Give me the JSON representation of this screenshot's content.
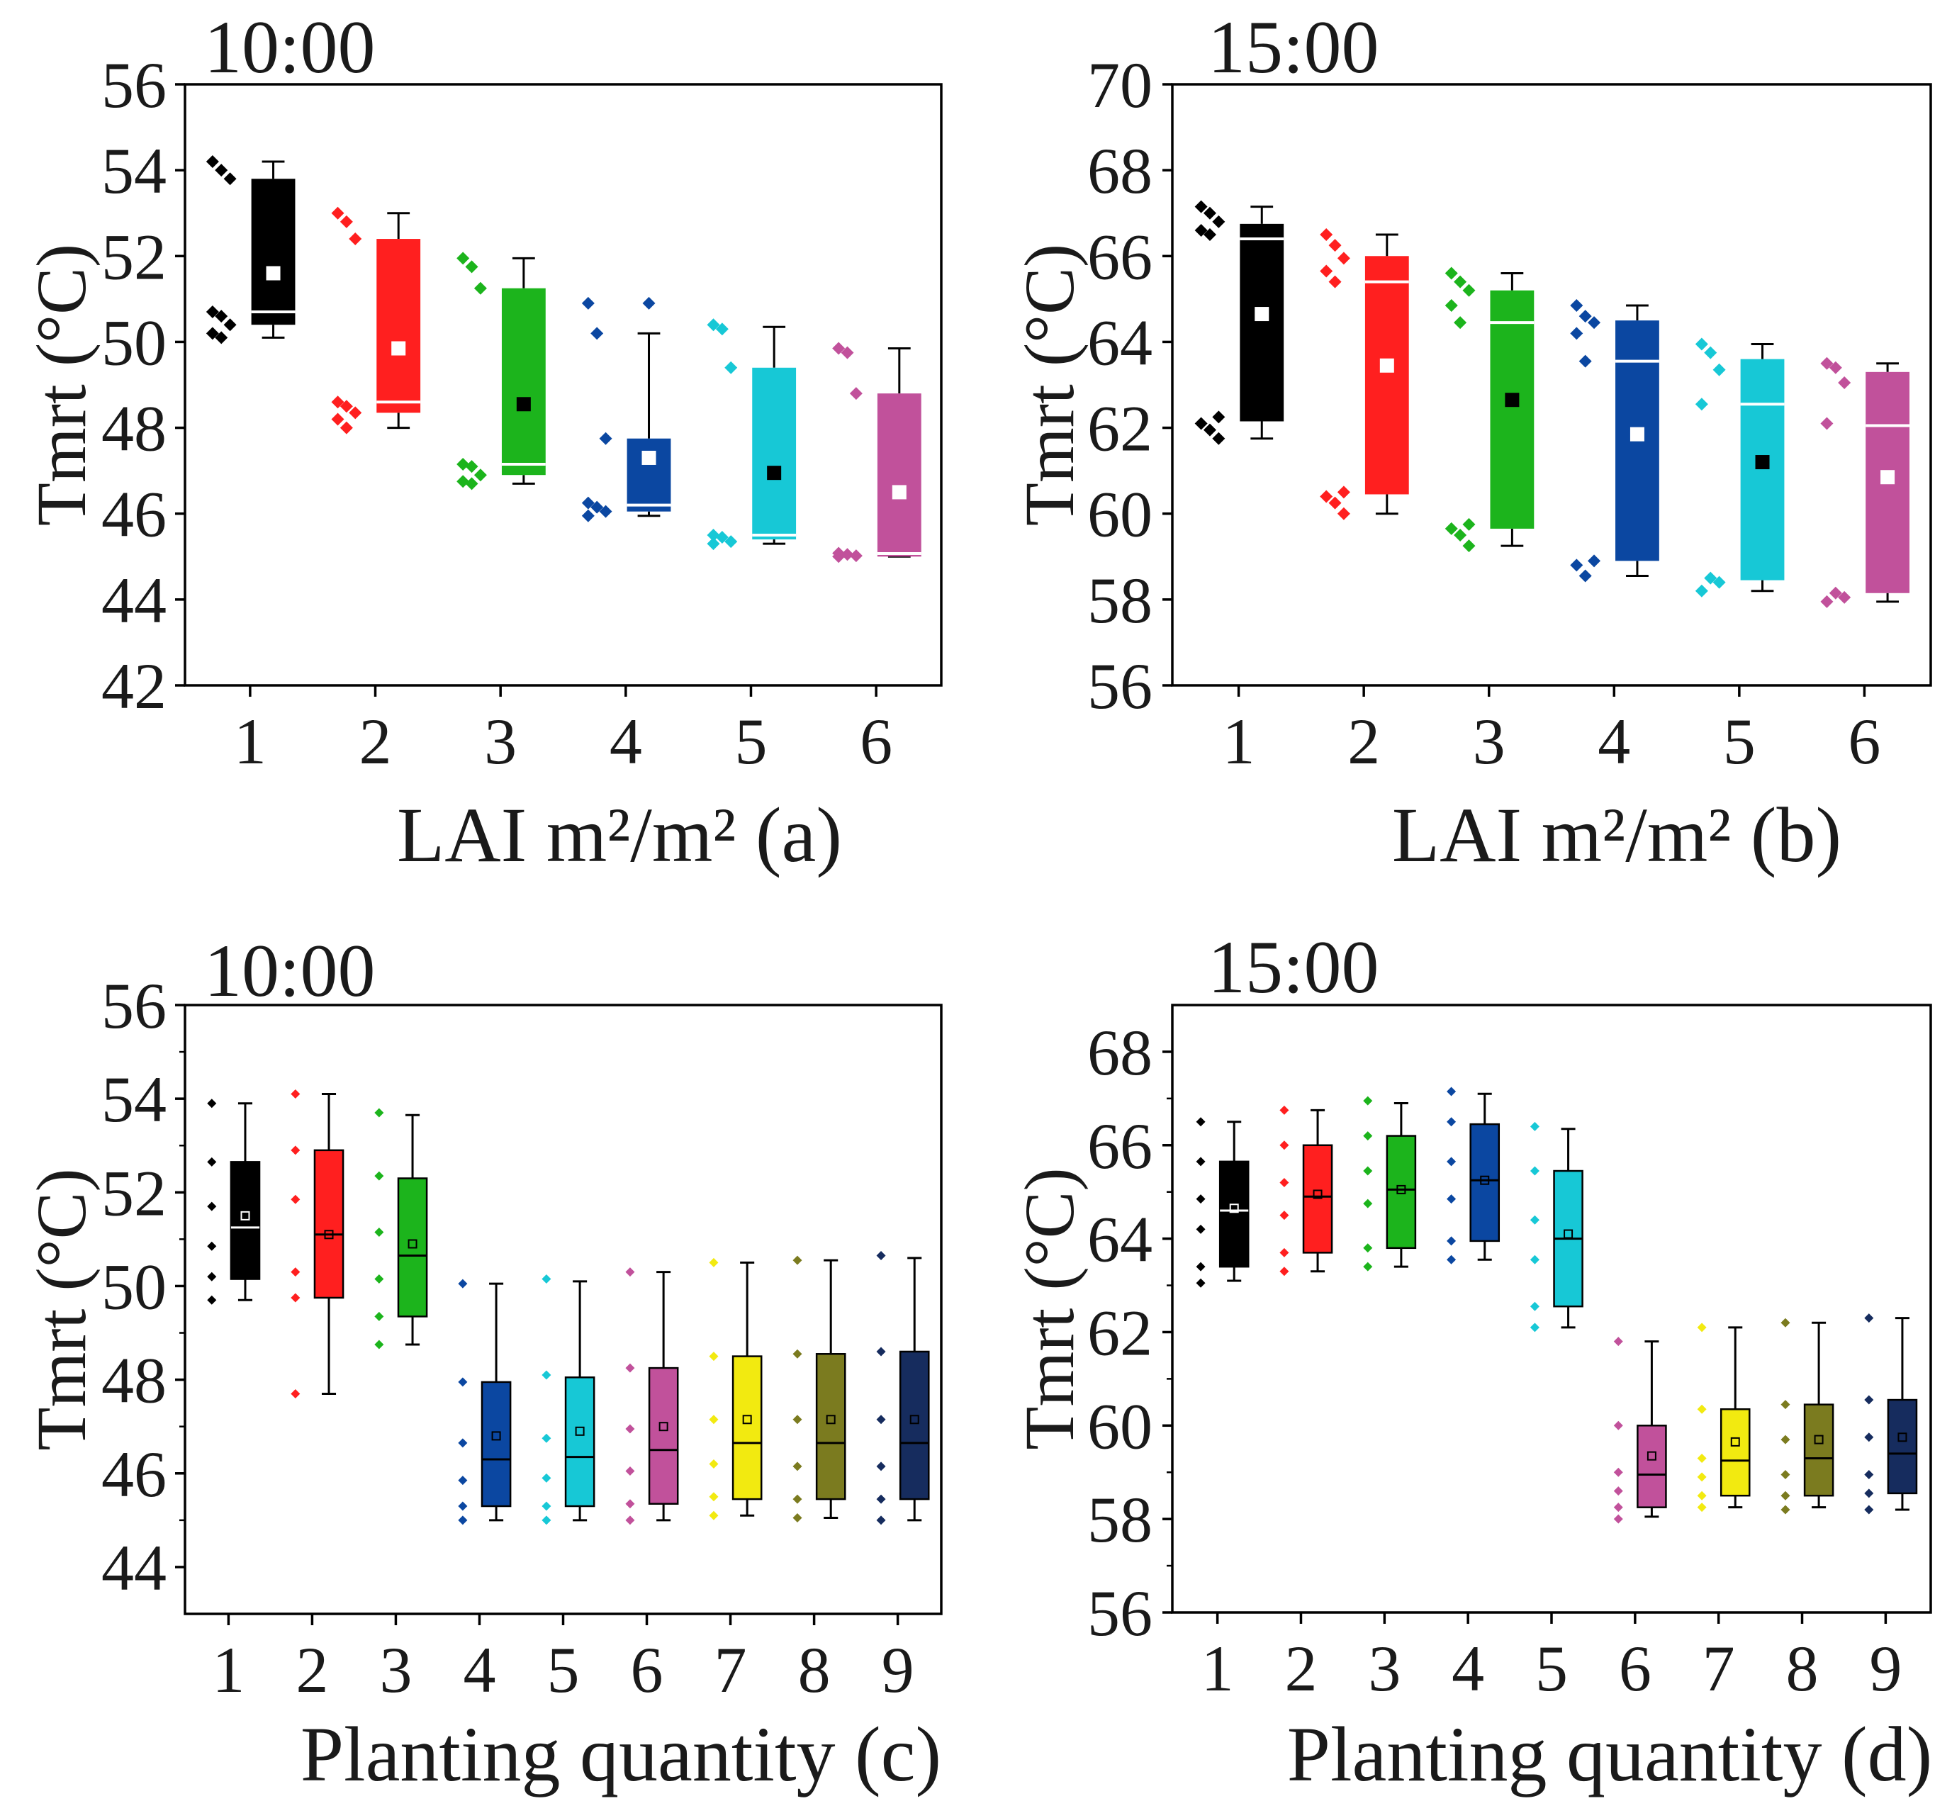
{
  "chart_data": [
    {
      "type": "box",
      "title": "10:00",
      "xlabel": "LAI m²/m² (a)",
      "ylabel": "Tmrt (°C)",
      "categories": [
        "1",
        "2",
        "3",
        "4",
        "5",
        "6"
      ],
      "ylim": [
        42,
        56
      ],
      "yticks": [
        42,
        44,
        46,
        48,
        50,
        52,
        54,
        56
      ],
      "colors": [
        "#000000",
        "#FF1F1F",
        "#1CB41C",
        "#0B47A1",
        "#17C8D6",
        "#C1519B"
      ],
      "median_colors": [
        "#FFFFFF",
        "#FFFFFF",
        "#FFFFFF",
        "#FFFFFF",
        "#FFFFFF",
        "#FFFFFF"
      ],
      "mean_marker_colors": [
        "#FFFFFF",
        "#FFFFFF",
        "#000000",
        "#FFFFFF",
        "#000000",
        "#FFFFFF"
      ],
      "series": [
        {
          "min": 50.1,
          "q1": 50.4,
          "median": 50.7,
          "q3": 53.8,
          "max": 54.2,
          "mean": 51.6,
          "outliers": [],
          "points": [
            54.2,
            54.0,
            53.8,
            50.7,
            50.6,
            50.4,
            50.2,
            50.1
          ]
        },
        {
          "min": 48.0,
          "q1": 48.35,
          "median": 48.6,
          "q3": 52.4,
          "max": 53.0,
          "mean": 49.85,
          "outliers": [],
          "points": [
            53.0,
            52.8,
            52.4,
            48.6,
            48.5,
            48.35,
            48.2,
            48.0
          ]
        },
        {
          "min": 46.7,
          "q1": 46.9,
          "median": 47.15,
          "q3": 51.25,
          "max": 51.95,
          "mean": 48.55,
          "outliers": [],
          "points": [
            51.95,
            51.75,
            51.25,
            47.15,
            47.1,
            46.9,
            46.75,
            46.7
          ]
        },
        {
          "min": 45.95,
          "q1": 46.05,
          "median": 46.2,
          "q3": 47.75,
          "max": 50.2,
          "mean": 47.3,
          "outliers": [
            50.9
          ],
          "points": [
            50.9,
            50.2,
            47.75,
            46.25,
            46.15,
            46.05,
            45.95
          ]
        },
        {
          "min": 45.3,
          "q1": 45.4,
          "median": 45.5,
          "q3": 49.4,
          "max": 50.35,
          "mean": 46.95,
          "outliers": [],
          "points": [
            50.4,
            50.3,
            49.4,
            45.5,
            45.45,
            45.35,
            45.3
          ]
        },
        {
          "min": 45.0,
          "q1": 45.0,
          "median": 45.07,
          "q3": 48.8,
          "max": 49.85,
          "mean": 46.5,
          "outliers": [],
          "points": [
            49.85,
            49.75,
            48.8,
            45.08,
            45.05,
            45.02,
            45.0
          ]
        }
      ]
    },
    {
      "type": "box",
      "title": "15:00",
      "xlabel": "LAI m²/m² (b)",
      "ylabel": "Tmrt (°C)",
      "categories": [
        "1",
        "2",
        "3",
        "4",
        "5",
        "6"
      ],
      "ylim": [
        56,
        70
      ],
      "yticks": [
        56,
        58,
        60,
        62,
        64,
        66,
        68,
        70
      ],
      "colors": [
        "#000000",
        "#FF1F1F",
        "#1CB41C",
        "#0B47A1",
        "#17C8D6",
        "#C1519B"
      ],
      "median_colors": [
        "#FFFFFF",
        "#FFFFFF",
        "#FFFFFF",
        "#FFFFFF",
        "#FFFFFF",
        "#FFFFFF"
      ],
      "mean_marker_colors": [
        "#FFFFFF",
        "#FFFFFF",
        "#000000",
        "#FFFFFF",
        "#000000",
        "#FFFFFF"
      ],
      "series": [
        {
          "min": 61.75,
          "q1": 62.15,
          "median": 66.4,
          "q3": 66.75,
          "max": 67.15,
          "mean": 64.65,
          "outliers": [],
          "points": [
            67.15,
            67.0,
            66.8,
            66.6,
            66.5,
            62.25,
            62.1,
            61.95,
            61.75
          ]
        },
        {
          "min": 60.0,
          "q1": 60.45,
          "median": 65.4,
          "q3": 66.0,
          "max": 66.5,
          "mean": 63.45,
          "outliers": [],
          "points": [
            66.5,
            66.25,
            65.95,
            65.65,
            65.4,
            60.5,
            60.4,
            60.25,
            60.0
          ]
        },
        {
          "min": 59.25,
          "q1": 59.65,
          "median": 64.45,
          "q3": 65.2,
          "max": 65.6,
          "mean": 62.65,
          "outliers": [],
          "points": [
            65.6,
            65.4,
            65.2,
            64.85,
            64.45,
            59.75,
            59.65,
            59.5,
            59.25
          ]
        },
        {
          "min": 58.55,
          "q1": 58.9,
          "median": 63.55,
          "q3": 64.5,
          "max": 64.85,
          "mean": 61.85,
          "outliers": [],
          "points": [
            64.85,
            64.6,
            64.45,
            64.2,
            63.55,
            58.9,
            58.8,
            58.55
          ]
        },
        {
          "min": 58.2,
          "q1": 58.45,
          "median": 62.55,
          "q3": 63.6,
          "max": 63.95,
          "mean": 61.2,
          "outliers": [],
          "points": [
            63.95,
            63.75,
            63.35,
            62.55,
            58.5,
            58.4,
            58.2
          ]
        },
        {
          "min": 57.95,
          "q1": 58.15,
          "median": 62.05,
          "q3": 63.3,
          "max": 63.5,
          "mean": 60.85,
          "outliers": [],
          "points": [
            63.5,
            63.4,
            63.05,
            62.1,
            58.15,
            58.05,
            57.95
          ]
        }
      ]
    },
    {
      "type": "box",
      "title": "10:00",
      "xlabel": "Planting quantity (c)",
      "ylabel": "Tmrt (°C)",
      "categories": [
        "1",
        "2",
        "3",
        "4",
        "5",
        "6",
        "7",
        "8",
        "9"
      ],
      "ylim": [
        43,
        56
      ],
      "yticks": [
        44,
        46,
        48,
        50,
        52,
        54,
        56
      ],
      "colors": [
        "#000000",
        "#FF1F1F",
        "#1CB41C",
        "#0B47A1",
        "#17C8D6",
        "#C1519B",
        "#F2EA10",
        "#7B7B1F",
        "#162C5E"
      ],
      "median_colors": [
        "#FFFFFF",
        "#000000",
        "#000000",
        "#000000",
        "#000000",
        "#000000",
        "#000000",
        "#000000",
        "#000000"
      ],
      "mean_marker_colors": [
        "#FFFFFF",
        "#000000",
        "#000000",
        "#000000",
        "#000000",
        "#000000",
        "#000000",
        "#000000",
        "#000000"
      ],
      "series": [
        {
          "min": 49.7,
          "q1": 50.15,
          "median": 51.25,
          "q3": 52.65,
          "max": 53.9,
          "mean": 51.5,
          "outliers": [],
          "points": [
            53.9,
            52.65,
            51.7,
            50.85,
            50.2,
            49.7
          ]
        },
        {
          "min": 47.7,
          "q1": 49.75,
          "median": 51.1,
          "q3": 52.9,
          "max": 54.1,
          "mean": 51.1,
          "outliers": [],
          "points": [
            54.1,
            52.9,
            51.85,
            50.3,
            49.75,
            47.7
          ]
        },
        {
          "min": 48.75,
          "q1": 49.35,
          "median": 50.65,
          "q3": 52.3,
          "max": 53.65,
          "mean": 50.9,
          "outliers": [],
          "points": [
            53.7,
            52.35,
            51.15,
            50.15,
            49.35,
            48.75
          ]
        },
        {
          "min": 45.0,
          "q1": 45.3,
          "median": 46.3,
          "q3": 47.95,
          "max": 50.05,
          "mean": 46.8,
          "outliers": [],
          "points": [
            50.05,
            47.95,
            46.65,
            45.85,
            45.3,
            45.0
          ]
        },
        {
          "min": 45.0,
          "q1": 45.3,
          "median": 46.35,
          "q3": 48.05,
          "max": 50.1,
          "mean": 46.9,
          "outliers": [],
          "points": [
            50.15,
            48.1,
            46.75,
            45.9,
            45.3,
            45.0
          ]
        },
        {
          "min": 45.0,
          "q1": 45.35,
          "median": 46.5,
          "q3": 48.25,
          "max": 50.3,
          "mean": 47.0,
          "outliers": [],
          "points": [
            50.3,
            48.25,
            46.95,
            46.05,
            45.35,
            45.0
          ]
        },
        {
          "min": 45.1,
          "q1": 45.45,
          "median": 46.65,
          "q3": 48.5,
          "max": 50.5,
          "mean": 47.15,
          "outliers": [],
          "points": [
            50.5,
            48.5,
            47.15,
            46.2,
            45.5,
            45.1
          ]
        },
        {
          "min": 45.05,
          "q1": 45.45,
          "median": 46.65,
          "q3": 48.55,
          "max": 50.55,
          "mean": 47.15,
          "outliers": [],
          "points": [
            50.55,
            48.55,
            47.15,
            46.15,
            45.45,
            45.05
          ]
        },
        {
          "min": 45.0,
          "q1": 45.45,
          "median": 46.65,
          "q3": 48.6,
          "max": 50.6,
          "mean": 47.15,
          "outliers": [],
          "points": [
            50.65,
            48.6,
            47.15,
            46.15,
            45.45,
            45.0
          ]
        }
      ]
    },
    {
      "type": "box",
      "title": "15:00",
      "xlabel": "Planting quantity (d)",
      "ylabel": "Tmrt (°C)",
      "categories": [
        "1",
        "2",
        "3",
        "4",
        "5",
        "6",
        "7",
        "8",
        "9"
      ],
      "ylim": [
        56,
        69
      ],
      "yticks": [
        56,
        58,
        60,
        62,
        64,
        66,
        68
      ],
      "colors": [
        "#000000",
        "#FF1F1F",
        "#1CB41C",
        "#0B47A1",
        "#17C8D6",
        "#C1519B",
        "#F2EA10",
        "#7B7B1F",
        "#162C5E"
      ],
      "median_colors": [
        "#FFFFFF",
        "#000000",
        "#000000",
        "#000000",
        "#000000",
        "#000000",
        "#000000",
        "#000000",
        "#000000"
      ],
      "mean_marker_colors": [
        "#FFFFFF",
        "#000000",
        "#000000",
        "#000000",
        "#000000",
        "#000000",
        "#000000",
        "#000000",
        "#000000"
      ],
      "series": [
        {
          "min": 63.1,
          "q1": 63.4,
          "median": 64.6,
          "q3": 65.65,
          "max": 66.5,
          "mean": 64.65,
          "outliers": [],
          "points": [
            66.5,
            65.65,
            64.85,
            64.2,
            63.4,
            63.05
          ]
        },
        {
          "min": 63.3,
          "q1": 63.7,
          "median": 64.9,
          "q3": 66.0,
          "max": 66.75,
          "mean": 64.95,
          "outliers": [],
          "points": [
            66.75,
            66.0,
            65.2,
            64.5,
            63.7,
            63.3
          ]
        },
        {
          "min": 63.4,
          "q1": 63.8,
          "median": 65.05,
          "q3": 66.2,
          "max": 66.9,
          "mean": 65.05,
          "outliers": [],
          "points": [
            66.95,
            66.2,
            65.45,
            64.75,
            63.8,
            63.4
          ]
        },
        {
          "min": 63.55,
          "q1": 63.95,
          "median": 65.25,
          "q3": 66.45,
          "max": 67.1,
          "mean": 65.25,
          "outliers": [],
          "points": [
            67.15,
            66.5,
            65.65,
            64.85,
            63.95,
            63.55
          ]
        },
        {
          "min": 62.1,
          "q1": 62.55,
          "median": 64.0,
          "q3": 65.45,
          "max": 66.35,
          "mean": 64.1,
          "outliers": [],
          "points": [
            66.4,
            65.45,
            64.4,
            63.55,
            62.55,
            62.1
          ]
        },
        {
          "min": 58.05,
          "q1": 58.25,
          "median": 58.95,
          "q3": 60.0,
          "max": 61.8,
          "mean": 59.35,
          "outliers": [],
          "points": [
            61.8,
            60.0,
            59.0,
            58.6,
            58.25,
            58.0
          ]
        },
        {
          "min": 58.25,
          "q1": 58.5,
          "median": 59.25,
          "q3": 60.35,
          "max": 62.1,
          "mean": 59.65,
          "outliers": [],
          "points": [
            62.1,
            60.35,
            59.3,
            58.9,
            58.5,
            58.25
          ]
        },
        {
          "min": 58.25,
          "q1": 58.5,
          "median": 59.3,
          "q3": 60.45,
          "max": 62.2,
          "mean": 59.7,
          "outliers": [],
          "points": [
            62.2,
            60.45,
            59.7,
            58.95,
            58.5,
            58.2
          ]
        },
        {
          "min": 58.2,
          "q1": 58.55,
          "median": 59.4,
          "q3": 60.55,
          "max": 62.3,
          "mean": 59.75,
          "outliers": [],
          "points": [
            62.3,
            60.55,
            59.75,
            58.95,
            58.55,
            58.2
          ]
        }
      ]
    }
  ]
}
